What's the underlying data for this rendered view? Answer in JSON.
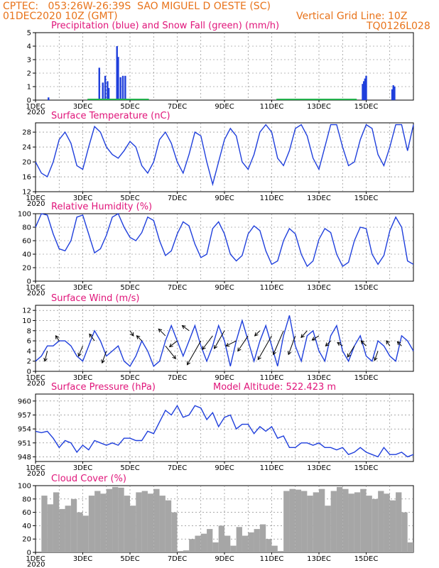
{
  "header": {
    "line1_left": "CPTEC:   053:26W-26:39S  SAO MIGUEL D OESTE (SC)",
    "line2_left": "01DEC2020 10Z (GMT)",
    "line2_right": "Vertical Grid Line: 10Z",
    "line3_right": "TQ0126L028"
  },
  "x_axis": {
    "ticks": [
      "1DEC",
      "3DEC",
      "5DEC",
      "7DEC",
      "9DEC",
      "11DEC",
      "13DEC",
      "15DEC"
    ],
    "year_label": "2020"
  },
  "colors": {
    "header": "#e8731a",
    "title": "#e0157a",
    "series": "#1f3fdc",
    "snow": "#22b14c",
    "cloud": "#a6a6a6"
  },
  "chart_data": [
    {
      "id": "precip",
      "type": "bar",
      "title": "Precipitation (blue) and Snow Fall (green) (mm/h)",
      "ylim": [
        0,
        5
      ],
      "yticks": [
        0,
        1,
        2,
        3,
        4,
        5
      ],
      "series": [
        {
          "name": "Precipitation",
          "color": "#1f3fdc",
          "points": [
            [
              0.55,
              0.2
            ],
            [
              2.7,
              2.4
            ],
            [
              2.85,
              1.3
            ],
            [
              2.95,
              1.8
            ],
            [
              3.05,
              1.4
            ],
            [
              3.1,
              0.9
            ],
            [
              3.45,
              4.0
            ],
            [
              3.5,
              3.2
            ],
            [
              3.6,
              1.7
            ],
            [
              3.7,
              1.8
            ],
            [
              3.8,
              1.8
            ],
            [
              13.85,
              1.2
            ],
            [
              13.9,
              1.4
            ],
            [
              13.95,
              1.6
            ],
            [
              14.0,
              1.8
            ],
            [
              15.1,
              0.8
            ],
            [
              15.15,
              1.1
            ],
            [
              15.2,
              1.0
            ]
          ]
        },
        {
          "name": "Snow Fall",
          "color": "#22b14c",
          "points": []
        }
      ]
    },
    {
      "id": "temp",
      "type": "line",
      "title": "Surface Temperature (nC)",
      "ylim": [
        12,
        30.5
      ],
      "yticks": [
        12,
        16,
        20,
        24,
        28
      ],
      "x": [
        0,
        0.25,
        0.5,
        0.75,
        1,
        1.25,
        1.5,
        1.75,
        2,
        2.25,
        2.5,
        2.75,
        3,
        3.25,
        3.5,
        3.75,
        4,
        4.25,
        4.5,
        4.75,
        5,
        5.25,
        5.5,
        5.75,
        6,
        6.25,
        6.5,
        6.75,
        7,
        7.25,
        7.5,
        7.75,
        8,
        8.25,
        8.5,
        8.75,
        9,
        9.25,
        9.5,
        9.75,
        10,
        10.25,
        10.5,
        10.75,
        11,
        11.25,
        11.5,
        11.75,
        12,
        12.25,
        12.5,
        12.75,
        13,
        13.25,
        13.5,
        13.75,
        14,
        14.25,
        14.5,
        14.75,
        15,
        15.25,
        15.5,
        15.75,
        16
      ],
      "y": [
        20,
        17,
        16,
        20,
        26,
        28,
        25,
        19,
        18,
        24,
        29.5,
        28,
        24,
        22,
        21,
        23,
        25.5,
        24,
        19,
        17,
        20,
        26,
        28,
        25,
        20,
        17,
        22,
        28,
        27,
        20,
        14,
        20,
        26,
        29,
        27,
        20,
        18,
        22,
        28,
        30,
        28,
        21,
        19,
        23,
        29,
        30,
        27,
        21,
        18,
        24,
        30,
        30,
        24,
        19,
        20,
        26,
        30,
        29,
        22,
        19,
        24,
        30,
        30,
        23,
        30
      ]
    },
    {
      "id": "rh",
      "type": "line",
      "title": "Relative Humidity (%)",
      "ylim": [
        0,
        100
      ],
      "yticks": [
        0,
        20,
        40,
        60,
        80,
        100
      ],
      "x": [
        0,
        0.25,
        0.5,
        0.75,
        1,
        1.25,
        1.5,
        1.75,
        2,
        2.25,
        2.5,
        2.75,
        3,
        3.25,
        3.5,
        3.75,
        4,
        4.25,
        4.5,
        4.75,
        5,
        5.25,
        5.5,
        5.75,
        6,
        6.25,
        6.5,
        6.75,
        7,
        7.25,
        7.5,
        7.75,
        8,
        8.25,
        8.5,
        8.75,
        9,
        9.25,
        9.5,
        9.75,
        10,
        10.25,
        10.5,
        10.75,
        11,
        11.25,
        11.5,
        11.75,
        12,
        12.25,
        12.5,
        12.75,
        13,
        13.25,
        13.5,
        13.75,
        14,
        14.25,
        14.5,
        14.75,
        15,
        15.25,
        15.5,
        15.75,
        16
      ],
      "y": [
        80,
        100,
        98,
        70,
        48,
        45,
        60,
        95,
        98,
        70,
        42,
        48,
        68,
        95,
        100,
        80,
        65,
        60,
        72,
        95,
        90,
        60,
        38,
        45,
        70,
        88,
        82,
        55,
        35,
        40,
        78,
        88,
        70,
        40,
        30,
        38,
        70,
        82,
        75,
        45,
        25,
        30,
        60,
        78,
        70,
        40,
        22,
        30,
        62,
        78,
        72,
        40,
        22,
        28,
        60,
        80,
        78,
        40,
        25,
        38,
        75,
        95,
        80,
        30,
        25
      ]
    },
    {
      "id": "wind",
      "type": "line",
      "title": "Surface Wind (m/s)",
      "ylim": [
        0,
        13
      ],
      "yticks": [
        0,
        2,
        4,
        6,
        8,
        10,
        12
      ],
      "x": [
        0,
        0.25,
        0.5,
        0.75,
        1,
        1.25,
        1.5,
        1.75,
        2,
        2.25,
        2.5,
        2.75,
        3,
        3.25,
        3.5,
        3.75,
        4,
        4.25,
        4.5,
        4.75,
        5,
        5.25,
        5.5,
        5.75,
        6,
        6.25,
        6.5,
        6.75,
        7,
        7.25,
        7.5,
        7.75,
        8,
        8.25,
        8.5,
        8.75,
        9,
        9.25,
        9.5,
        9.75,
        10,
        10.25,
        10.5,
        10.75,
        11,
        11.25,
        11.5,
        11.75,
        12,
        12.25,
        12.5,
        12.75,
        13,
        13.25,
        13.5,
        13.75,
        14,
        14.25,
        14.5,
        14.75,
        15,
        15.25,
        15.5,
        15.75,
        16
      ],
      "y": [
        2,
        3,
        5,
        5,
        6,
        6,
        5,
        3,
        2,
        5,
        8,
        6,
        3,
        4,
        5,
        2,
        1,
        3,
        6,
        4,
        1,
        2,
        6,
        9,
        6,
        3,
        6,
        9,
        5,
        2,
        5,
        9,
        6,
        1,
        6,
        10,
        6,
        2,
        6,
        9,
        5,
        1,
        7,
        11,
        5,
        2,
        7,
        8,
        4,
        2,
        7,
        9,
        4,
        2,
        5,
        7,
        3,
        2,
        6,
        5,
        3,
        2,
        7,
        6,
        4
      ],
      "arrows": [
        [
          0.5,
          4,
          -0.3,
          -1.2
        ],
        [
          1,
          6,
          -0.4,
          0.6
        ],
        [
          2,
          5,
          -0.5,
          -1.2
        ],
        [
          2.5,
          6,
          -0.6,
          0.8
        ],
        [
          3,
          4,
          -0.5,
          -1.4
        ],
        [
          4,
          8,
          0.4,
          -0.6
        ],
        [
          4.5,
          6,
          -0.6,
          0.6
        ],
        [
          5.5,
          7,
          -0.8,
          0.8
        ],
        [
          5.5,
          5,
          1.2,
          -1.5
        ],
        [
          6,
          6,
          -0.9,
          -0.7
        ],
        [
          6.5,
          8,
          -0.8,
          0.6
        ],
        [
          7,
          6,
          -1.6,
          -2.8
        ],
        [
          7.5,
          7,
          -1.2,
          -1.6
        ],
        [
          8,
          8,
          -1.2,
          -2.1
        ],
        [
          8.5,
          6,
          -1.2,
          -0.6
        ],
        [
          9,
          7,
          -1.2,
          -1.8
        ],
        [
          9.5,
          8,
          -0.6,
          -0.6
        ],
        [
          10,
          7,
          -1.6,
          -2.8
        ],
        [
          10.5,
          8,
          -1.2,
          -2.8
        ],
        [
          11,
          7,
          -0.8,
          -2.2
        ],
        [
          11.5,
          8,
          -0.7,
          -0.8
        ],
        [
          12,
          7,
          -0.8,
          -0.5
        ],
        [
          12.5,
          6,
          -0.6,
          -0.6
        ],
        [
          13,
          5,
          -0.6,
          0.4
        ],
        [
          13.5,
          5,
          -0.8,
          -1.3
        ],
        [
          14,
          5,
          -0.6,
          0.6
        ],
        [
          14.5,
          4,
          -0.4,
          -1.1
        ],
        [
          15,
          5,
          -0.4,
          0.6
        ],
        [
          15.5,
          5,
          -0.5,
          0.5
        ]
      ]
    },
    {
      "id": "pres",
      "type": "line",
      "title": "Surface Pressure (hPa)",
      "annotation": "Model Altitude: 522.423 m",
      "ylim": [
        947,
        961.5
      ],
      "yticks": [
        948,
        951,
        954,
        957,
        960
      ],
      "x": [
        0,
        0.25,
        0.5,
        0.75,
        1,
        1.25,
        1.5,
        1.75,
        2,
        2.25,
        2.5,
        2.75,
        3,
        3.25,
        3.5,
        3.75,
        4,
        4.25,
        4.5,
        4.75,
        5,
        5.25,
        5.5,
        5.75,
        6,
        6.25,
        6.5,
        6.75,
        7,
        7.25,
        7.5,
        7.75,
        8,
        8.25,
        8.5,
        8.75,
        9,
        9.25,
        9.5,
        9.75,
        10,
        10.25,
        10.5,
        10.75,
        11,
        11.25,
        11.5,
        11.75,
        12,
        12.25,
        12.5,
        12.75,
        13,
        13.25,
        13.5,
        13.75,
        14,
        14.25,
        14.5,
        14.75,
        15,
        15.25,
        15.5,
        15.75,
        16
      ],
      "y": [
        953.5,
        953.2,
        953.5,
        952,
        950,
        951.5,
        951,
        949,
        950.5,
        949.5,
        951.5,
        951,
        950.5,
        951,
        950.5,
        952,
        952,
        951.5,
        951.5,
        953.5,
        953,
        955.5,
        958,
        957,
        959,
        956.5,
        957,
        959,
        958.5,
        956,
        957.5,
        954.5,
        956.5,
        957,
        954,
        955,
        955,
        953,
        954.5,
        953.5,
        954.5,
        952,
        952.5,
        950,
        950,
        951,
        951,
        950.5,
        951,
        950,
        950,
        949.5,
        950,
        948.5,
        949,
        950,
        949,
        948.5,
        948,
        950,
        948.5,
        948.5,
        949,
        948,
        948.5
      ]
    },
    {
      "id": "cloud",
      "type": "area",
      "title": "Cloud Cover (%)",
      "ylim": [
        0,
        100
      ],
      "yticks": [
        0,
        20,
        40,
        60,
        80,
        100
      ],
      "x": [
        0,
        0.25,
        0.5,
        0.75,
        1,
        1.25,
        1.5,
        1.75,
        2,
        2.25,
        2.5,
        2.75,
        3,
        3.25,
        3.5,
        3.75,
        4,
        4.25,
        4.5,
        4.75,
        5,
        5.25,
        5.5,
        5.75,
        6,
        6.25,
        6.5,
        6.75,
        7,
        7.25,
        7.5,
        7.75,
        8,
        8.25,
        8.5,
        8.75,
        9,
        9.25,
        9.5,
        9.75,
        10,
        10.25,
        10.5,
        10.75,
        11,
        11.25,
        11.5,
        11.75,
        12,
        12.25,
        12.5,
        12.75,
        13,
        13.25,
        13.5,
        13.75,
        14,
        14.25,
        14.5,
        14.75,
        15,
        15.25,
        15.5,
        15.75,
        16
      ],
      "y": [
        0,
        85,
        72,
        90,
        65,
        70,
        80,
        60,
        55,
        85,
        92,
        88,
        95,
        98,
        97,
        85,
        70,
        90,
        92,
        88,
        95,
        85,
        78,
        60,
        2,
        3,
        20,
        25,
        28,
        35,
        15,
        40,
        25,
        10,
        38,
        25,
        30,
        35,
        42,
        20,
        10,
        2,
        92,
        95,
        94,
        92,
        85,
        90,
        95,
        70,
        92,
        98,
        95,
        88,
        90,
        95,
        85,
        80,
        92,
        88,
        78,
        90,
        60,
        15,
        0
      ]
    }
  ]
}
